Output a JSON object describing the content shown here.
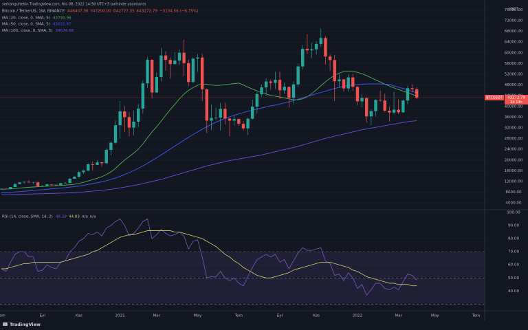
{
  "header": {
    "published": "serkangultekin TradingView.com, Nis 08, 2022 14:58 UTC+3 tarihinde yayınlandı",
    "symbol": "Bitcoin / TetherUS, 1W, BINANCE",
    "ohlc_text": [
      "A46407.36",
      "Y47200.00",
      "D42727.35",
      "K43272.79",
      "−3134.56 (−6.75%)"
    ],
    "ticker": "BTCUSDT",
    "countdown": "3d 13h",
    "currency": "USDT",
    "brand": "TradingView"
  },
  "chart_data": {
    "type": "candlestick",
    "categories": [
      "Tem",
      null,
      null,
      null,
      null,
      null,
      null,
      null,
      null,
      "Eyl",
      null,
      null,
      null,
      null,
      null,
      null,
      null,
      "Kas",
      null,
      null,
      null,
      null,
      null,
      null,
      null,
      null,
      "2021",
      null,
      null,
      null,
      null,
      null,
      null,
      null,
      "Mar",
      null,
      null,
      null,
      null,
      null,
      null,
      null,
      null,
      "May",
      null,
      null,
      null,
      null,
      null,
      null,
      null,
      null,
      "Tem",
      null,
      null,
      null,
      null,
      null,
      null,
      null,
      null,
      "Eyl",
      null,
      null,
      null,
      null,
      null,
      null,
      null,
      "Kas",
      null,
      null,
      null,
      null,
      null,
      null,
      null,
      null,
      "2022",
      null,
      null,
      null,
      null,
      null,
      null,
      null,
      null,
      "Mar",
      null,
      null,
      null,
      null,
      null,
      null,
      null,
      "May",
      null,
      null,
      null,
      null,
      null,
      null,
      null,
      null,
      "Tem"
    ],
    "open": [
      9070,
      9300,
      9170,
      9930,
      11050,
      11680,
      11850,
      11650,
      11660,
      10250,
      10330,
      10920,
      10770,
      10670,
      11370,
      11500,
      13030,
      13790,
      15480,
      16060,
      18400,
      18180,
      19150,
      18800,
      23800,
      26450,
      33000,
      38150,
      36000,
      32100,
      34300,
      39200,
      48600,
      57400,
      45200,
      50970,
      59000,
      57350,
      55800,
      57080,
      60000,
      56150,
      49100,
      57800,
      58250,
      46400,
      34700,
      35700,
      35800,
      39100,
      35500,
      34700,
      35300,
      33500,
      31800,
      35400,
      39900,
      44600,
      47100,
      49300,
      48800,
      49900,
      46000,
      47300,
      43200,
      48200,
      54900,
      61500,
      60900,
      61300,
      63300,
      65500,
      58600,
      57300,
      49400,
      50100,
      46700,
      50800,
      47300,
      41900,
      43100,
      36300,
      38200,
      42400,
      42200,
      38400,
      37700,
      38800,
      37800,
      42200,
      46800,
      46407.36,
      null,
      null,
      null,
      null,
      null,
      null,
      null,
      null,
      null,
      null,
      null,
      null,
      null
    ],
    "high": [
      9440,
      9350,
      9980,
      11450,
      11800,
      12100,
      12470,
      11800,
      12090,
      10570,
      11180,
      10960,
      10970,
      11490,
      11720,
      13350,
      14100,
      15970,
      16480,
      18800,
      19420,
      19900,
      19350,
      24300,
      27000,
      34800,
      42000,
      40100,
      37850,
      38500,
      40900,
      49700,
      58350,
      57500,
      52650,
      61800,
      60600,
      58400,
      60200,
      61200,
      64850,
      57500,
      58450,
      59500,
      59600,
      46700,
      40800,
      39500,
      41300,
      41400,
      35600,
      36600,
      35400,
      34600,
      35800,
      42500,
      45300,
      48150,
      50500,
      50000,
      52900,
      52950,
      48850,
      47350,
      49300,
      56100,
      62900,
      67000,
      63700,
      64300,
      69000,
      66300,
      59400,
      59200,
      51950,
      50150,
      51900,
      52100,
      47570,
      44500,
      43500,
      38900,
      42700,
      45850,
      44750,
      40000,
      45450,
      42600,
      42400,
      47700,
      48200,
      47200.0,
      null,
      null,
      null,
      null,
      null,
      null,
      null,
      null,
      null,
      null,
      null,
      null,
      null
    ],
    "low": [
      9040,
      9010,
      9120,
      9900,
      10950,
      11150,
      11500,
      11130,
      9870,
      9880,
      10270,
      10140,
      10370,
      10530,
      11180,
      11400,
      12970,
      13200,
      14850,
      15950,
      16200,
      18100,
      17580,
      18750,
      21800,
      26000,
      28000,
      30400,
      28900,
      29250,
      32300,
      37400,
      46900,
      43000,
      45100,
      49300,
      53300,
      50400,
      55500,
      55450,
      51300,
      47500,
      48800,
      52900,
      42000,
      30000,
      31100,
      34800,
      31000,
      33300,
      28800,
      32700,
      32700,
      31000,
      29300,
      35200,
      37300,
      43700,
      43950,
      46300,
      46500,
      42800,
      44700,
      39600,
      40800,
      47200,
      53800,
      59500,
      58000,
      59400,
      62300,
      55600,
      53250,
      42000,
      47000,
      45500,
      45550,
      45700,
      40500,
      39650,
      34000,
      32900,
      36300,
      41700,
      38000,
      34300,
      37100,
      37150,
      37600,
      40800,
      45200,
      42727.35,
      null,
      null,
      null,
      null,
      null,
      null,
      null,
      null,
      null,
      null,
      null,
      null,
      null
    ],
    "close": [
      9300,
      9170,
      9930,
      11050,
      11680,
      11850,
      11650,
      11660,
      10250,
      10330,
      10920,
      10770,
      10670,
      11370,
      11500,
      13030,
      13790,
      15480,
      16060,
      18400,
      18180,
      19150,
      18800,
      23800,
      26450,
      33000,
      38150,
      36000,
      32100,
      34300,
      39200,
      48600,
      57400,
      45200,
      50970,
      59000,
      57350,
      55800,
      57080,
      60000,
      56150,
      49100,
      57800,
      58250,
      46400,
      34700,
      35700,
      35800,
      39100,
      35500,
      34700,
      35300,
      33500,
      31800,
      35400,
      39900,
      44600,
      47100,
      49300,
      48800,
      49900,
      46000,
      47300,
      43200,
      48200,
      54900,
      61500,
      60900,
      61300,
      63300,
      65500,
      58600,
      57300,
      49400,
      50100,
      46700,
      50800,
      47300,
      41900,
      43100,
      36300,
      38200,
      42400,
      42200,
      38400,
      37700,
      38800,
      37800,
      42200,
      46800,
      46407.35,
      43272.79,
      null,
      null,
      null,
      null,
      null,
      null,
      null,
      null,
      null,
      null,
      null,
      null,
      null
    ],
    "up_color": "#26a69a",
    "down_color": "#ef5350",
    "ylim": [
      2000,
      78400
    ],
    "yticks": [
      {
        "value": 4000,
        "label": "4000.00"
      },
      {
        "value": 8000,
        "label": "8000.00"
      },
      {
        "value": 12000,
        "label": "12000.00"
      },
      {
        "value": 16000,
        "label": "16000.00"
      },
      {
        "value": 20000,
        "label": "20000.00"
      },
      {
        "value": 24000,
        "label": "24000.00"
      },
      {
        "value": 28000,
        "label": "28000.00"
      },
      {
        "value": 32000,
        "label": "32000.00"
      },
      {
        "value": 36000,
        "label": "36000.00"
      },
      {
        "value": 40000,
        "label": "40000.00"
      },
      {
        "value": 44000,
        "label": "44000.00"
      },
      {
        "value": 48000,
        "label": "48000.00"
      },
      {
        "value": 52000,
        "label": "52000.00"
      },
      {
        "value": 56000,
        "label": "56000.00"
      },
      {
        "value": 60000,
        "label": "60000.00"
      },
      {
        "value": 64000,
        "label": "64000.00"
      },
      {
        "value": 68000,
        "label": "68000.00"
      },
      {
        "value": 72000,
        "label": "72000.00"
      },
      {
        "value": 76000,
        "label": "76000.00"
      }
    ],
    "grid": true,
    "indicators": [
      {
        "name": "MA (20, close, 0, SMA, 5)",
        "color": "#4caf50",
        "values": [
          9100,
          9150,
          9250,
          9400,
          9550,
          9700,
          9850,
          9950,
          10050,
          10150,
          10250,
          10350,
          10450,
          10550,
          10650,
          10800,
          11000,
          11300,
          11700,
          12200,
          12700,
          13200,
          13800,
          14600,
          15600,
          16900,
          18500,
          20000,
          21300,
          22600,
          24100,
          26000,
          28300,
          30500,
          32400,
          34500,
          36700,
          38800,
          40800,
          42800,
          44600,
          46000,
          47000,
          47900,
          48300,
          48300,
          48000,
          47800,
          47900,
          48100,
          48300,
          48500,
          48700,
          48000,
          47200,
          46500,
          45800,
          45200,
          44600,
          44100,
          43800,
          43500,
          43200,
          42800,
          42500,
          42500,
          42800,
          43600,
          44800,
          46200,
          47700,
          49200,
          50500,
          51600,
          52400,
          53000,
          53200,
          53100,
          52700,
          52200,
          51500,
          50700,
          49900,
          49100,
          48300,
          47600,
          46900,
          46300,
          45700,
          45100,
          44500,
          43790.96,
          null,
          null,
          null,
          null,
          null,
          null,
          null,
          null,
          null,
          null,
          null,
          null,
          null
        ]
      },
      {
        "name": "MA (50, close, 0, SMA, 5)",
        "color": "#3d5afe",
        "values": [
          7800,
          7900,
          8000,
          8100,
          8200,
          8350,
          8500,
          8650,
          8800,
          8950,
          9100,
          9250,
          9400,
          9550,
          9700,
          9900,
          10100,
          10300,
          10600,
          10900,
          11200,
          11500,
          11900,
          12300,
          12800,
          13300,
          13900,
          14600,
          15300,
          16100,
          16900,
          17800,
          18800,
          19800,
          20800,
          21900,
          23000,
          24100,
          25200,
          26300,
          27400,
          28500,
          29500,
          30500,
          31500,
          32400,
          33300,
          34100,
          34800,
          35500,
          36100,
          36700,
          37200,
          37700,
          38200,
          38600,
          39000,
          39400,
          39800,
          40200,
          40500,
          40900,
          41300,
          41700,
          42200,
          42700,
          43200,
          43700,
          44200,
          44700,
          45200,
          45700,
          46200,
          46700,
          47100,
          47500,
          47800,
          48000,
          48200,
          48300,
          48400,
          48400,
          48400,
          48400,
          48300,
          48300,
          47600,
          47200,
          46700,
          46200,
          45600,
          45031.97,
          null,
          null,
          null,
          null,
          null,
          null,
          null,
          null,
          null,
          null,
          null,
          null,
          null
        ]
      },
      {
        "name": "MA (100, close, 0, SMA, 5)",
        "color": "#6a4fd8",
        "values": [
          7000,
          7050,
          7100,
          7150,
          7200,
          7250,
          7300,
          7350,
          7400,
          7450,
          7500,
          7550,
          7600,
          7650,
          7700,
          7800,
          7900,
          8000,
          8100,
          8250,
          8400,
          8550,
          8700,
          8900,
          9100,
          9300,
          9600,
          9900,
          10200,
          10500,
          10800,
          11200,
          11600,
          12000,
          12400,
          12800,
          13300,
          13800,
          14300,
          14800,
          15300,
          15800,
          16300,
          16800,
          17300,
          17800,
          18200,
          18600,
          19000,
          19400,
          19800,
          20100,
          20400,
          20700,
          21000,
          21300,
          21600,
          21900,
          22300,
          22700,
          23100,
          23500,
          23900,
          24300,
          24700,
          25100,
          25600,
          26100,
          26600,
          27100,
          27600,
          28100,
          28500,
          28900,
          29300,
          29700,
          30100,
          30500,
          30900,
          31300,
          31600,
          31900,
          32200,
          32500,
          32800,
          33100,
          33400,
          33700,
          34000,
          34300,
          34500,
          34674.88,
          null,
          null,
          null,
          null,
          null,
          null,
          null,
          null,
          null,
          null,
          null,
          null,
          null
        ]
      }
    ],
    "rsi": {
      "name": "RSI (14, close, SMA, 14, 2)",
      "color": "#7e57c2",
      "ma_color": "#d4cf6a",
      "band_color": "#7e57c2",
      "extra": [
        "n/a",
        "n/a"
      ],
      "values": [
        57,
        55,
        62,
        68,
        70,
        70,
        66,
        66,
        55,
        56,
        60,
        58,
        57,
        62,
        63,
        70,
        73,
        78,
        80,
        84,
        83,
        85,
        82,
        88,
        90,
        93,
        95,
        90,
        82,
        84,
        88,
        93,
        95,
        80,
        83,
        87,
        84,
        82,
        83,
        85,
        82,
        72,
        78,
        79,
        66,
        50,
        51,
        51,
        55,
        50,
        48,
        50,
        46,
        44,
        51,
        58,
        64,
        66,
        68,
        66,
        68,
        62,
        64,
        57,
        63,
        69,
        73,
        71,
        71,
        72,
        73,
        63,
        61,
        52,
        53,
        48,
        54,
        50,
        42,
        45,
        37,
        41,
        46,
        46,
        42,
        41,
        43,
        41,
        47,
        53,
        52,
        48.39,
        null,
        null,
        null,
        null,
        null,
        null,
        null,
        null,
        null,
        null,
        null,
        null,
        null
      ],
      "ma_values": [
        57,
        57,
        58,
        59,
        60,
        61,
        61,
        62,
        62,
        62,
        62,
        62,
        62,
        62,
        63,
        64,
        65,
        66,
        67,
        68,
        70,
        71,
        73,
        75,
        77,
        79,
        81,
        82,
        83,
        83,
        84,
        85,
        86,
        86,
        86,
        86,
        86,
        86,
        85,
        85,
        84,
        83,
        82,
        81,
        80,
        78,
        76,
        74,
        71,
        68,
        66,
        63,
        61,
        58,
        56,
        54,
        52,
        51,
        50,
        50,
        51,
        52,
        53,
        54,
        56,
        57,
        58,
        59,
        60,
        61,
        62,
        62,
        62,
        61,
        60,
        59,
        58,
        56,
        55,
        53,
        51,
        50,
        49,
        48,
        47,
        46,
        46,
        45,
        45,
        45,
        44,
        44.03,
        null,
        null,
        null,
        null,
        null,
        null,
        null,
        null,
        null,
        null,
        null,
        null,
        null
      ],
      "ylim": [
        25,
        101.5
      ],
      "yticks": [
        {
          "value": 40,
          "label": "40.00"
        },
        {
          "value": 50,
          "label": "50.00"
        },
        {
          "value": 60,
          "label": "60.00"
        },
        {
          "value": 70,
          "label": "70.00"
        },
        {
          "value": 80,
          "label": "80.00"
        },
        {
          "value": 90,
          "label": "90.00"
        },
        {
          "value": 100,
          "label": "100.00"
        }
      ],
      "levels": [
        70,
        50,
        30
      ]
    }
  }
}
